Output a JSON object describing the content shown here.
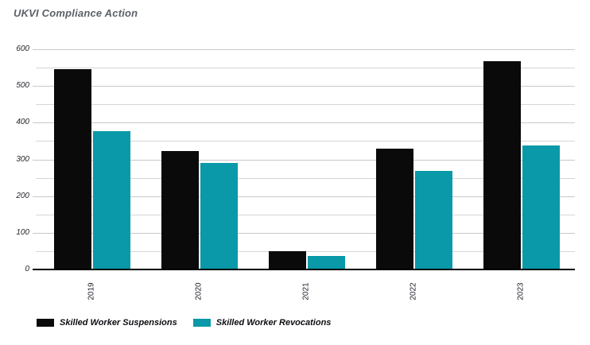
{
  "title": "UKVI Compliance Action",
  "chart_data": {
    "type": "bar",
    "title": "UKVI Compliance Action",
    "categories": [
      "2019",
      "2020",
      "2021",
      "2022",
      "2023"
    ],
    "series": [
      {
        "name": "Skilled Worker Suspensions",
        "color": "#0a0a0a",
        "values": [
          545,
          322,
          49,
          330,
          568
        ]
      },
      {
        "name": "Skilled Worker Revocations",
        "color": "#0999a8",
        "values": [
          376,
          290,
          36,
          268,
          337
        ]
      }
    ],
    "xlabel": "",
    "ylabel": "",
    "ylim": [
      0,
      600
    ],
    "yticks_labeled": [
      0,
      100,
      200,
      300,
      400,
      500,
      600
    ],
    "ytick_minor_step": 50,
    "grid": true,
    "legend_position": "bottom-left"
  },
  "legend": {
    "items": [
      {
        "label": "Skilled Worker Suspensions",
        "color": "#0a0a0a"
      },
      {
        "label": "Skilled Worker Revocations",
        "color": "#0999a8"
      }
    ]
  },
  "colors": {
    "background": "#ffffff",
    "gridline": "#d6d6d6",
    "axis": "#000000",
    "title_text": "#5b6168",
    "tick_text": "#26262e"
  }
}
